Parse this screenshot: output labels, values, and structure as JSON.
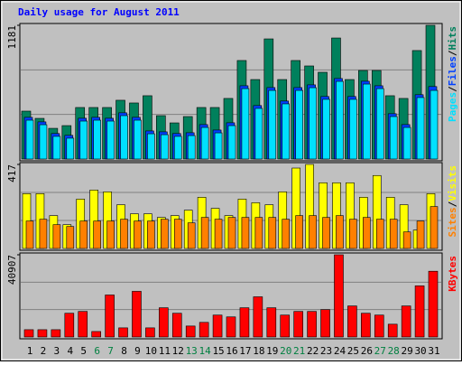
{
  "chart_data": {
    "type": "bar",
    "title": "Daily usage for August 2011",
    "categories": [
      "1",
      "2",
      "3",
      "4",
      "5",
      "6",
      "7",
      "8",
      "9",
      "10",
      "11",
      "12",
      "13",
      "14",
      "15",
      "16",
      "17",
      "18",
      "19",
      "20",
      "21",
      "22",
      "23",
      "24",
      "25",
      "26",
      "27",
      "28",
      "29",
      "30",
      "31"
    ],
    "highlight_color": "#008040",
    "highlight_indices": [
      5,
      6,
      12,
      13,
      19,
      20,
      26,
      27
    ],
    "legend_separator": "/",
    "panels": [
      {
        "ylim": [
          0,
          1181
        ],
        "yticks": [
          1181
        ],
        "series": [
          {
            "name": "Hits",
            "color": "#00805c",
            "values": [
              423,
              359,
              271,
              295,
              455,
              455,
              455,
              519,
              495,
              559,
              383,
              319,
              375,
              455,
              455,
              535,
              870,
              702,
              1061,
              702,
              870,
              822,
              766,
              1069,
              702,
              782,
              782,
              559,
              535,
              958,
              1181
            ]
          },
          {
            "name": "Files",
            "color": "#0040ff",
            "values": [
              368,
              328,
              225,
              209,
              360,
              368,
              360,
              408,
              368,
              248,
              240,
              225,
              232,
              304,
              256,
              320,
              647,
              472,
              631,
              512,
              631,
              655,
              552,
              711,
              552,
              687,
              647,
              400,
              304,
              568,
              640
            ]
          },
          {
            "name": "Pages",
            "color": "#00e0ff",
            "values": [
              343,
              303,
              200,
              184,
              335,
              343,
              335,
              383,
              343,
              223,
              215,
              200,
              207,
              279,
              231,
              295,
              622,
              447,
              606,
              487,
              606,
              630,
              527,
              686,
              527,
              662,
              622,
              375,
              279,
              543,
              606
            ]
          }
        ]
      },
      {
        "ylim": [
          0,
          417
        ],
        "yticks": [
          417
        ],
        "series": [
          {
            "name": "Visits",
            "color": "#ffff00",
            "values": [
              272,
              272,
              163,
              118,
              245,
              290,
              281,
              217,
              172,
              172,
              154,
              163,
              190,
              254,
              199,
              163,
              245,
              227,
              217,
              281,
              399,
              417,
              326,
              326,
              326,
              254,
              362,
              254,
              217,
              91,
              272
            ]
          },
          {
            "name": "Sites",
            "color": "#ff8000",
            "values": [
              136,
              145,
              118,
              109,
              136,
              136,
              136,
              145,
              136,
              136,
              145,
              145,
              127,
              154,
              145,
              154,
              154,
              154,
              154,
              145,
              163,
              163,
              154,
              163,
              145,
              154,
              145,
              145,
              82,
              136,
              208
            ]
          }
        ]
      },
      {
        "ylim": [
          0,
          40907
        ],
        "yticks": [
          40907
        ],
        "series": [
          {
            "name": "KBytes",
            "color": "#ff0000",
            "values": [
              3636,
              3636,
              3636,
              11817,
              12726,
              2727,
              20907,
              4545,
              22725,
              4545,
              14544,
              11817,
              5454,
              7272,
              10908,
              9999,
              14544,
              19998,
              14544,
              10908,
              12726,
              12726,
              13635,
              40907,
              15453,
              11817,
              10908,
              6363,
              15453,
              25452,
              32724
            ]
          }
        ]
      }
    ]
  }
}
